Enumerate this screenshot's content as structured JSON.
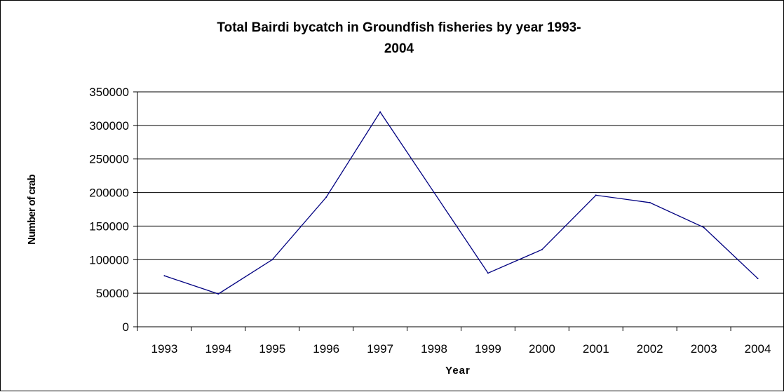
{
  "chart_data": {
    "type": "line",
    "title": "Total Bairdi bycatch in Groundfish fisheries by year 1993-2004",
    "title_lines": [
      "Total Bairdi bycatch in Groundfish fisheries by year 1993-",
      "2004"
    ],
    "xlabel": "Year",
    "ylabel": "Number of crab",
    "categories": [
      "1993",
      "1994",
      "1995",
      "1996",
      "1997",
      "1998",
      "1999",
      "2000",
      "2001",
      "2002",
      "2003",
      "2004"
    ],
    "series": [
      {
        "values": [
          76000,
          49000,
          100000,
          193000,
          320000,
          200000,
          80000,
          115000,
          196000,
          185000,
          148000,
          72000
        ]
      }
    ],
    "ylim": [
      0,
      350000
    ],
    "yticks": [
      0,
      50000,
      100000,
      150000,
      200000,
      250000,
      300000,
      350000
    ],
    "ytick_labels": [
      "0",
      "50000",
      "100000",
      "150000",
      "200000",
      "250000",
      "300000",
      "350000"
    ],
    "grid": true,
    "legend": "none",
    "colors": {
      "line": "#000080",
      "grid": "#000000",
      "background": "#ffffff"
    }
  }
}
